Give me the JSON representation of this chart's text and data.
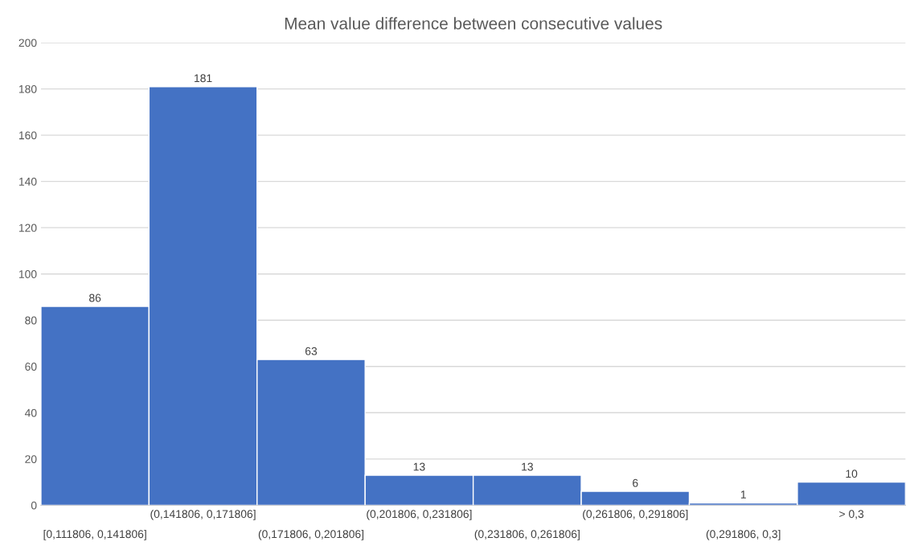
{
  "chart_data": {
    "type": "bar",
    "title": "Mean value difference between consecutive values",
    "categories": [
      "[0,111806, 0,141806]",
      "(0,141806, 0,171806]",
      "(0,171806, 0,201806]",
      "(0,201806, 0,231806]",
      "(0,231806, 0,261806]",
      "(0,261806, 0,291806]",
      "(0,291806, 0,3]",
      "> 0,3"
    ],
    "values": [
      86,
      181,
      63,
      13,
      13,
      6,
      1,
      10
    ],
    "color": "#4472c4",
    "ylim": [
      0,
      200
    ],
    "yticks": [
      0,
      20,
      40,
      60,
      80,
      100,
      120,
      140,
      160,
      180,
      200
    ],
    "grid": "y",
    "data_labels": true
  }
}
